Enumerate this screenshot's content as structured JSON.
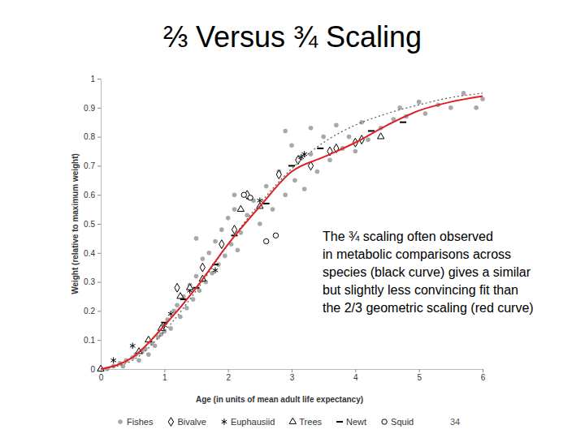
{
  "chart_data": {
    "type": "scatter",
    "title": "⅔ Versus ¾ Scaling",
    "x_label": "Age (in units of mean adult life expectancy)",
    "y_label": "Weight (relative to maximum weight)",
    "annotation": [
      "The ¾ scaling often observed",
      "in metabolic comparisons across",
      "species (black curve) gives a similar",
      "but slightly less convincing fit than",
      "the 2/3 geometric scaling (red curve)"
    ],
    "page_number": "34",
    "xlim": [
      0,
      6
    ],
    "xticks": [
      0,
      1,
      2,
      3,
      4,
      5,
      6
    ],
    "ylim": [
      0,
      1
    ],
    "yticks": [
      0,
      0.1,
      0.2,
      0.3,
      0.4,
      0.5,
      0.6,
      0.7,
      0.8,
      0.9,
      1
    ],
    "grid": false,
    "legend": "bottom",
    "series": [
      {
        "name": "Fishes",
        "color": "#999999",
        "marker": "dot",
        "x": [
          0.1,
          0.2,
          0.3,
          0.35,
          0.4,
          0.5,
          0.55,
          0.6,
          0.65,
          0.7,
          0.75,
          0.8,
          0.85,
          0.9,
          0.95,
          1.0,
          1.05,
          1.1,
          1.15,
          1.2,
          1.25,
          1.3,
          1.35,
          1.4,
          1.45,
          1.5,
          1.55,
          1.6,
          1.65,
          1.7,
          1.75,
          1.8,
          1.85,
          1.9,
          1.95,
          2.0,
          2.05,
          2.1,
          2.15,
          2.2,
          2.3,
          2.4,
          2.5,
          2.6,
          2.7,
          2.8,
          2.9,
          3.0,
          3.05,
          3.1,
          3.2,
          3.3,
          3.4,
          3.5,
          3.6,
          3.7,
          3.8,
          3.9,
          4.0,
          4.1,
          4.2,
          4.4,
          4.6,
          4.7,
          4.8,
          5.0,
          5.1,
          5.3,
          5.5,
          5.7,
          5.9,
          6.0,
          1.5,
          2.9,
          3.3,
          2.1
        ],
        "values": [
          0.0,
          0.01,
          0.02,
          0.01,
          0.03,
          0.04,
          0.05,
          0.03,
          0.06,
          0.07,
          0.05,
          0.09,
          0.08,
          0.11,
          0.12,
          0.13,
          0.17,
          0.14,
          0.2,
          0.22,
          0.18,
          0.25,
          0.21,
          0.29,
          0.24,
          0.32,
          0.27,
          0.38,
          0.3,
          0.4,
          0.33,
          0.44,
          0.36,
          0.48,
          0.39,
          0.52,
          0.43,
          0.55,
          0.41,
          0.47,
          0.53,
          0.58,
          0.5,
          0.63,
          0.55,
          0.68,
          0.6,
          0.77,
          0.65,
          0.72,
          0.62,
          0.74,
          0.68,
          0.8,
          0.72,
          0.84,
          0.76,
          0.8,
          0.75,
          0.85,
          0.79,
          0.83,
          0.86,
          0.9,
          0.87,
          0.92,
          0.88,
          0.91,
          0.9,
          0.95,
          0.9,
          0.93,
          0.45,
          0.82,
          0.83,
          0.6
        ]
      },
      {
        "name": "Bivalve",
        "color": "#000000",
        "marker": "diamond",
        "x": [
          1.2,
          1.6,
          1.9,
          2.1,
          2.3,
          2.8,
          3.1,
          3.3,
          3.6,
          3.7,
          4.0,
          4.1
        ],
        "values": [
          0.28,
          0.35,
          0.43,
          0.48,
          0.6,
          0.67,
          0.72,
          0.7,
          0.75,
          0.76,
          0.78,
          0.79
        ]
      },
      {
        "name": "Euphausiid",
        "color": "#000000",
        "marker": "asterisk",
        "x": [
          0.2,
          0.5,
          1.0,
          1.1,
          1.4,
          1.8,
          2.5,
          3.15,
          3.2
        ],
        "values": [
          0.03,
          0.08,
          0.15,
          0.19,
          0.27,
          0.34,
          0.58,
          0.73,
          0.74
        ]
      },
      {
        "name": "Trees",
        "color": "#000000",
        "marker": "triangle",
        "x": [
          0,
          0.6,
          0.75,
          0.95,
          1.25,
          1.4,
          1.6,
          2.2,
          2.5,
          4.4
        ],
        "values": [
          0,
          0.06,
          0.1,
          0.14,
          0.25,
          0.28,
          0.31,
          0.55,
          0.56,
          0.8
        ]
      },
      {
        "name": "Newt",
        "color": "#000000",
        "marker": "dash",
        "x": [
          1.0,
          1.3,
          1.5,
          1.8,
          2.1,
          2.6,
          3.0,
          3.45,
          4.25,
          4.75
        ],
        "values": [
          0.16,
          0.24,
          0.28,
          0.36,
          0.46,
          0.57,
          0.7,
          0.76,
          0.82,
          0.85
        ]
      },
      {
        "name": "Squid",
        "color": "#000000",
        "marker": "circle",
        "x": [
          2.25,
          2.35,
          2.6,
          2.75
        ],
        "values": [
          0.6,
          0.59,
          0.44,
          0.46
        ]
      },
      {
        "type": "line",
        "color": "#555555",
        "line_style": "dotted",
        "x": [
          0,
          0.5,
          1,
          1.5,
          2,
          2.5,
          3,
          3.5,
          4,
          4.5,
          5,
          5.5,
          6
        ],
        "values": [
          0,
          0.03,
          0.13,
          0.27,
          0.43,
          0.57,
          0.69,
          0.78,
          0.84,
          0.88,
          0.91,
          0.935,
          0.95
        ]
      },
      {
        "type": "line",
        "color": "#e02020",
        "line_style": "solid",
        "x": [
          0,
          0.5,
          1,
          1.5,
          2,
          2.5,
          3,
          3.5,
          4,
          4.5,
          5,
          5.5,
          6
        ],
        "values": [
          0,
          0.04,
          0.15,
          0.28,
          0.43,
          0.56,
          0.68,
          0.73,
          0.78,
          0.84,
          0.89,
          0.92,
          0.94
        ]
      }
    ]
  }
}
